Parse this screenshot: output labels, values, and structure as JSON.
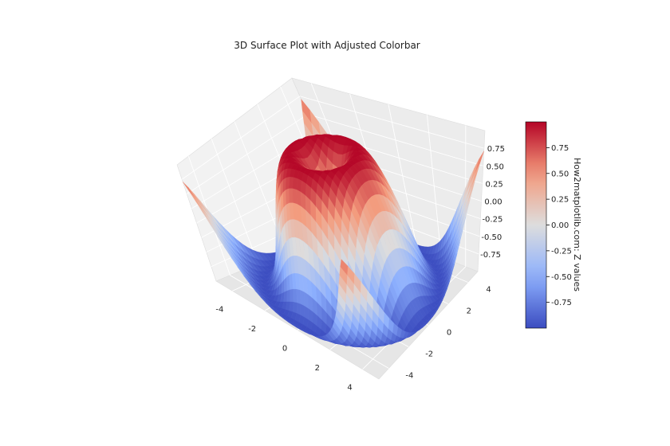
{
  "chart_data": {
    "type": "surface",
    "title": "3D Surface Plot with Adjusted Colorbar",
    "function": "z = sin(sqrt(x^2 + y^2))",
    "x_range": [
      -5,
      5
    ],
    "y_range": [
      -5,
      5
    ],
    "x_ticks": [
      "-4",
      "-2",
      "0",
      "2",
      "4"
    ],
    "y_ticks": [
      "-4",
      "-2",
      "0",
      "2",
      "4"
    ],
    "z_ticks": [
      "-0.75",
      "-0.50",
      "-0.25",
      "0.00",
      "0.25",
      "0.50",
      "0.75"
    ],
    "z_range": [
      -1,
      1
    ],
    "colormap": "coolwarm",
    "colorbar": {
      "label": "How2matplotlib.com: Z values",
      "ticks": [
        "-0.75",
        "-0.50",
        "-0.25",
        "0.00",
        "0.25",
        "0.50",
        "0.75"
      ],
      "range": [
        -1,
        1
      ]
    },
    "grid": true,
    "colors": {
      "low": "#3b4cc0",
      "mid": "#dddddd",
      "high": "#b40426",
      "pane": "#f2f2f2"
    }
  }
}
